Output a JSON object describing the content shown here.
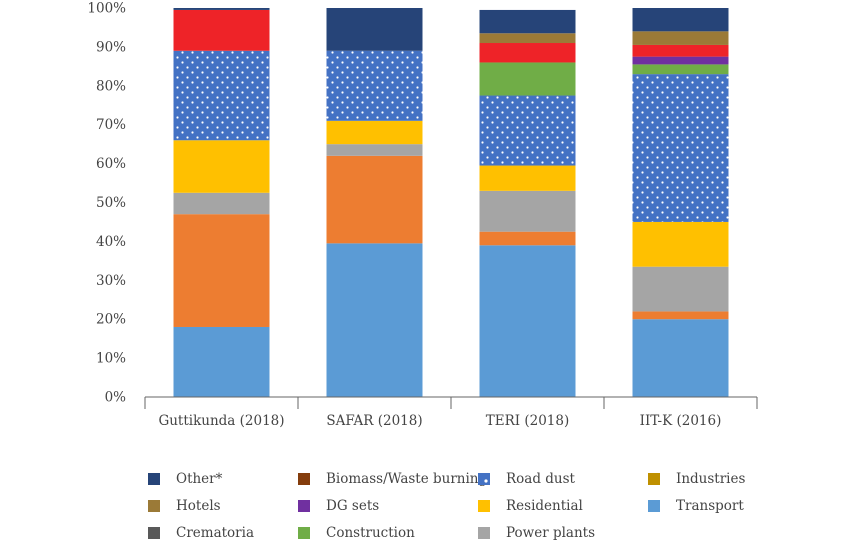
{
  "chart_data": {
    "type": "bar",
    "stacked": true,
    "percent": true,
    "ylim": [
      0,
      100
    ],
    "yticks": [
      "0%",
      "10%",
      "20%",
      "30%",
      "40%",
      "50%",
      "60%",
      "70%",
      "80%",
      "90%",
      "100%"
    ],
    "grid": false,
    "categories": [
      "Guttikunda (2018)",
      "SAFAR (2018)",
      "TERI (2018)",
      "IIT-K (2016)"
    ],
    "series": [
      {
        "name": "Transport",
        "color": "#5b9bd5",
        "values": [
          18,
          39.5,
          39,
          20
        ]
      },
      {
        "name": "Biomass/Waste burning",
        "color": "#ed7d31",
        "values": [
          29,
          22.5,
          3.5,
          2
        ]
      },
      {
        "name": "Power plants",
        "color": "#a5a5a5",
        "values": [
          5.5,
          3,
          10.5,
          11.5
        ]
      },
      {
        "name": "Residential",
        "color": "#ffc000",
        "values": [
          13.5,
          6,
          6.5,
          11.5
        ]
      },
      {
        "name": "Road dust",
        "color": "#4472c4",
        "pattern": "dots",
        "values": [
          23,
          18,
          18,
          38
        ]
      },
      {
        "name": "Construction",
        "color": "#70ad47",
        "values": [
          0,
          0,
          8.5,
          2.5
        ]
      },
      {
        "name": "DG sets",
        "color": "#7030a0",
        "values": [
          0,
          0,
          0,
          2
        ]
      },
      {
        "name": "Industries",
        "color": "#ee2328",
        "values": [
          10.5,
          0,
          5,
          3
        ]
      },
      {
        "name": "Hotels",
        "color": "#9b7a37",
        "values": [
          0,
          0,
          2.5,
          3.5
        ]
      },
      {
        "name": "Other*",
        "color": "#264478",
        "values": [
          0.5,
          11,
          6,
          6
        ]
      }
    ],
    "legend": {
      "position": "bottom",
      "items": [
        {
          "label": "Other*",
          "color": "#264478"
        },
        {
          "label": "Biomass/Waste burning",
          "color": "#843c0c"
        },
        {
          "label": "Road dust",
          "color": "#4472c4",
          "pattern": "dots"
        },
        {
          "label": "Industries",
          "color": "#bf9000"
        },
        {
          "label": "Hotels",
          "color": "#9b7a37"
        },
        {
          "label": "DG sets",
          "color": "#7030a0"
        },
        {
          "label": "Residential",
          "color": "#ffc000"
        },
        {
          "label": "Transport",
          "color": "#5b9bd5"
        },
        {
          "label": "Crematoria",
          "color": "#595959"
        },
        {
          "label": "Construction",
          "color": "#70ad47"
        },
        {
          "label": "Power plants",
          "color": "#a5a5a5"
        }
      ]
    }
  }
}
